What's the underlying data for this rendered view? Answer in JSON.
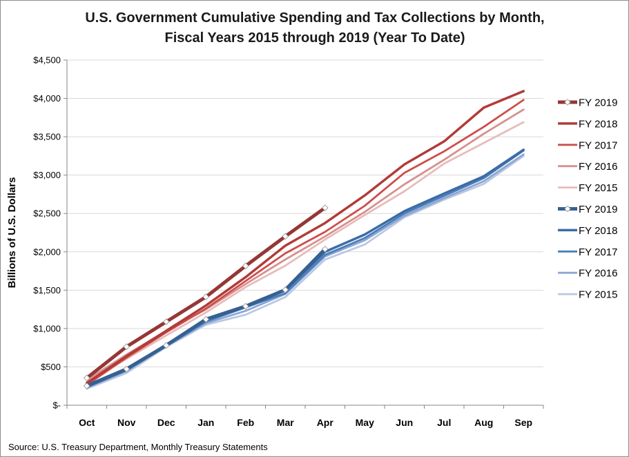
{
  "chart_data": {
    "type": "line",
    "title": "U.S. Government Cumulative Spending and Tax Collections by Month,",
    "subtitle": "Fiscal Years 2015 through 2019 (Year To Date)",
    "ylabel": "Billions of U.S. Dollars",
    "xlabel": "",
    "source": "Source: U.S. Treasury Department, Monthly Treasury Statements",
    "categories": [
      "Oct",
      "Nov",
      "Dec",
      "Jan",
      "Feb",
      "Mar",
      "Apr",
      "May",
      "Jun",
      "Jul",
      "Aug",
      "Sep"
    ],
    "ylim": [
      0,
      4500
    ],
    "yticks": [
      0,
      500,
      1000,
      1500,
      2000,
      2500,
      3000,
      3500,
      4000,
      4500
    ],
    "ytick_labels": [
      "$-",
      "$500",
      "$1,000",
      "$1,500",
      "$2,000",
      "$2,500",
      "$3,000",
      "$3,500",
      "$4,000",
      "$4,500"
    ],
    "grid": true,
    "legend_position": "right",
    "series": [
      {
        "name": "FY 2019",
        "group": "spending",
        "color": "#953735",
        "width": 5,
        "markers": true,
        "values": [
          355,
          763,
          1088,
          1412,
          1816,
          2202,
          2574,
          null,
          null,
          null,
          null,
          null
        ]
      },
      {
        "name": "FY 2018",
        "group": "spending",
        "color": "#b13b38",
        "width": 3.5,
        "markers": false,
        "values": [
          290,
          640,
          970,
          1300,
          1670,
          2080,
          2375,
          2735,
          3140,
          3440,
          3880,
          4095
        ]
      },
      {
        "name": "FY 2017",
        "group": "spending",
        "color": "#cc4e4b",
        "width": 2.8,
        "markers": false,
        "values": [
          265,
          620,
          950,
          1260,
          1620,
          1980,
          2260,
          2600,
          3030,
          3310,
          3630,
          3980
        ]
      },
      {
        "name": "FY 2016",
        "group": "spending",
        "color": "#d7908e",
        "width": 2.8,
        "markers": false,
        "values": [
          330,
          660,
          970,
          1250,
          1580,
          1900,
          2200,
          2520,
          2880,
          3200,
          3540,
          3855
        ]
      },
      {
        "name": "FY 2015",
        "group": "spending",
        "color": "#e6bcbb",
        "width": 2.8,
        "markers": false,
        "values": [
          305,
          605,
          910,
          1210,
          1540,
          1820,
          2160,
          2480,
          2790,
          3150,
          3420,
          3690
        ]
      },
      {
        "name": "FY 2019",
        "group": "receipts",
        "color": "#366092",
        "width": 5,
        "markers": true,
        "values": [
          252,
          472,
          780,
          1120,
          1290,
          1505,
          2035,
          null,
          null,
          null,
          null,
          null
        ]
      },
      {
        "name": "FY 2018",
        "group": "receipts",
        "color": "#3b6ca6",
        "width": 3.5,
        "markers": false,
        "values": [
          245,
          470,
          790,
          1120,
          1290,
          1500,
          2000,
          2225,
          2530,
          2760,
          2985,
          3330
        ]
      },
      {
        "name": "FY 2017",
        "group": "receipts",
        "color": "#4a7ebb",
        "width": 2.8,
        "markers": false,
        "values": [
          235,
          455,
          775,
          1090,
          1275,
          1460,
          1960,
          2180,
          2500,
          2730,
          2960,
          3320
        ]
      },
      {
        "name": "FY 2016",
        "group": "receipts",
        "color": "#8ca6d2",
        "width": 2.8,
        "markers": false,
        "values": [
          230,
          445,
          770,
          1070,
          1230,
          1450,
          1940,
          2150,
          2470,
          2700,
          2920,
          3270
        ]
      },
      {
        "name": "FY 2015",
        "group": "receipts",
        "color": "#bac8e2",
        "width": 2.8,
        "markers": false,
        "values": [
          215,
          420,
          760,
          1050,
          1180,
          1410,
          1900,
          2095,
          2450,
          2680,
          2885,
          3250
        ]
      }
    ]
  }
}
